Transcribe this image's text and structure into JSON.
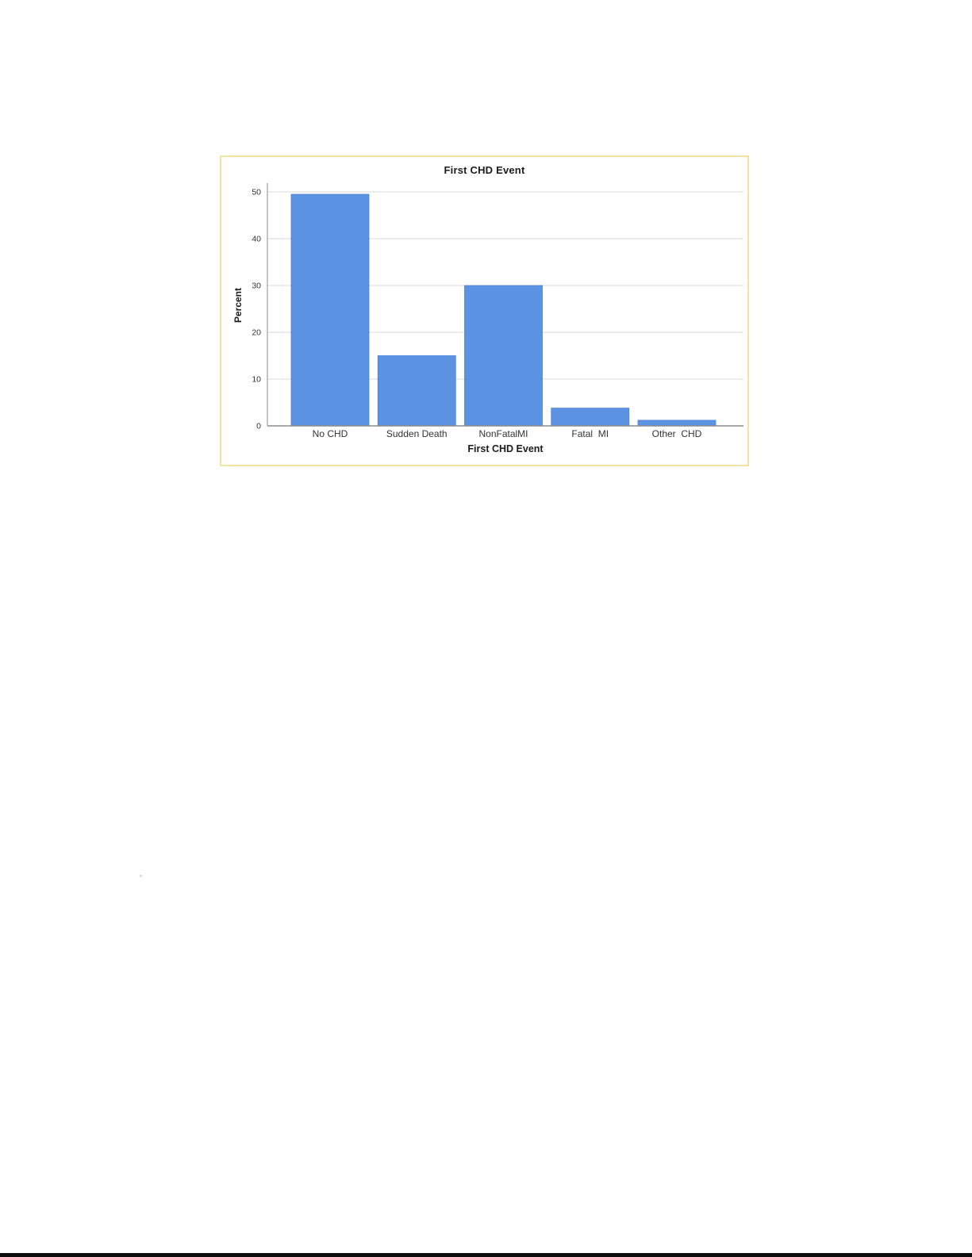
{
  "page": {
    "background_color": "#ffffff",
    "footer_bar_color": "#0c0c0c"
  },
  "chart_data": {
    "type": "bar",
    "title": "First CHD Event",
    "xlabel": "First CHD Event",
    "ylabel": "Percent",
    "categories": [
      "No CHD",
      "Sudden Death",
      "NonFatalMI",
      "Fatal  MI",
      "Other  CHD"
    ],
    "values": [
      49.5,
      15,
      30,
      3.8,
      1.2
    ],
    "ylim": [
      0,
      50
    ],
    "yticks": [
      0,
      10,
      20,
      30,
      40,
      50
    ],
    "grid": true,
    "legend_position": "none",
    "bar_color": "#5b92e2",
    "bar_border_color": "#4a82d8",
    "gridline_color": "#dadada",
    "axis_line_color": "#8c8c8c",
    "y_axis_line_color": "#9c9c9c",
    "tick_text_color": "#333333",
    "frame_border_color": "#f2e3a2"
  }
}
